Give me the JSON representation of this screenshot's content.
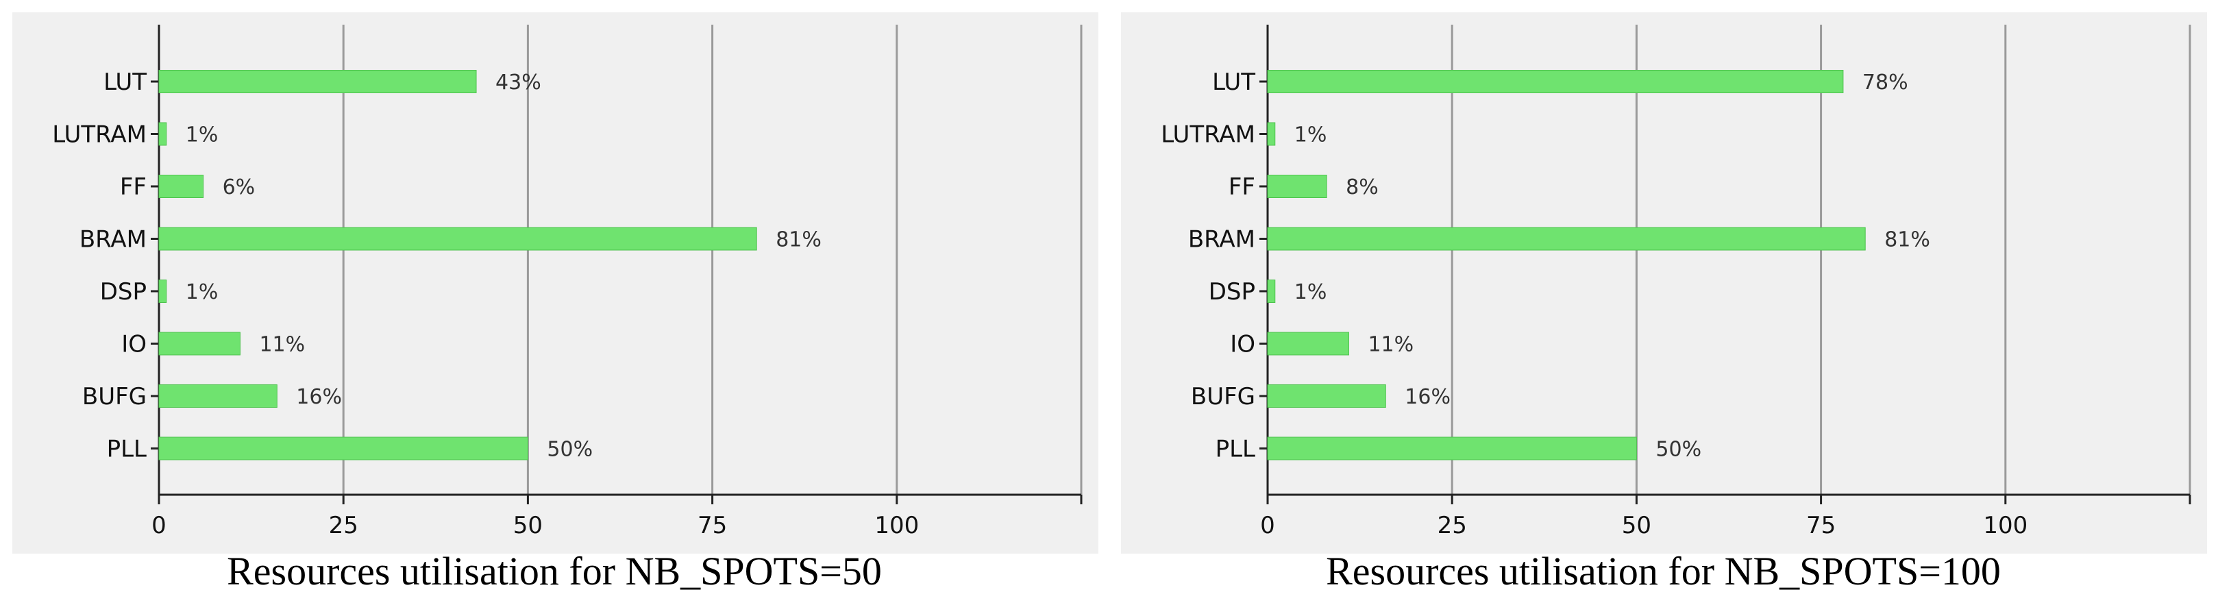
{
  "charts": [
    {
      "caption": "Resources utilisation for NB_SPOTS=50",
      "chart_data": {
        "type": "bar",
        "orientation": "horizontal",
        "categories": [
          "LUT",
          "LUTRAM",
          "FF",
          "BRAM",
          "DSP",
          "IO",
          "BUFG",
          "PLL"
        ],
        "values": [
          43,
          1,
          6,
          81,
          1,
          11,
          16,
          50
        ],
        "value_labels": [
          "43%",
          "1%",
          "6%",
          "81%",
          "1%",
          "11%",
          "16%",
          "50%"
        ],
        "xticks": [
          "0",
          "25",
          "50",
          "75",
          "100"
        ],
        "xlim": [
          0,
          125
        ],
        "grid": true,
        "bar_color": "#6fe36f"
      }
    },
    {
      "caption": "Resources utilisation for NB_SPOTS=100",
      "chart_data": {
        "type": "bar",
        "orientation": "horizontal",
        "categories": [
          "LUT",
          "LUTRAM",
          "FF",
          "BRAM",
          "DSP",
          "IO",
          "BUFG",
          "PLL"
        ],
        "values": [
          78,
          1,
          8,
          81,
          1,
          11,
          16,
          50
        ],
        "value_labels": [
          "78%",
          "1%",
          "8%",
          "81%",
          "1%",
          "11%",
          "16%",
          "50%"
        ],
        "xticks": [
          "0",
          "25",
          "50",
          "75",
          "100"
        ],
        "xlim": [
          0,
          125
        ],
        "grid": true,
        "bar_color": "#6fe36f"
      }
    }
  ]
}
